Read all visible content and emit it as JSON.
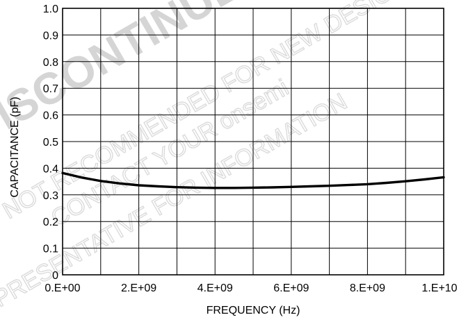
{
  "chart_data": {
    "type": "line",
    "xlabel": "FREQUENCY (Hz)",
    "ylabel": "CAPACITANCE (pF)",
    "xlim": [
      0,
      10000000000
    ],
    "ylim": [
      0,
      1.0
    ],
    "grid": true,
    "x_ticks": [
      0,
      1000000000,
      2000000000,
      3000000000,
      4000000000,
      5000000000,
      6000000000,
      7000000000,
      8000000000,
      9000000000,
      10000000000
    ],
    "x_tick_labels": [
      "0.E+00",
      "2.E+09",
      "4.E+09",
      "6.E+09",
      "8.E+09",
      "1.E+10"
    ],
    "x_tick_label_values": [
      0,
      2000000000,
      4000000000,
      6000000000,
      8000000000,
      10000000000
    ],
    "y_ticks": [
      0,
      0.1,
      0.2,
      0.3,
      0.4,
      0.5,
      0.6,
      0.7,
      0.8,
      0.9,
      1.0
    ],
    "y_tick_labels": [
      "0",
      "0.1",
      "0.2",
      "0.3",
      "0.4",
      "0.5",
      "0.6",
      "0.7",
      "0.8",
      "0.9",
      "1.0"
    ],
    "series": [
      {
        "color": "#000000",
        "x": [
          0,
          500000000,
          1000000000,
          1500000000,
          2000000000,
          2500000000,
          3000000000,
          3500000000,
          4000000000,
          4500000000,
          5000000000,
          5500000000,
          6000000000,
          6500000000,
          7000000000,
          7500000000,
          8000000000,
          8500000000,
          9000000000,
          9500000000,
          10000000000
        ],
        "y": [
          0.382,
          0.365,
          0.352,
          0.343,
          0.336,
          0.332,
          0.329,
          0.327,
          0.326,
          0.326,
          0.327,
          0.328,
          0.33,
          0.332,
          0.334,
          0.337,
          0.34,
          0.345,
          0.351,
          0.358,
          0.366
        ]
      }
    ]
  },
  "watermark": {
    "lines": [
      "DISCONTINUED",
      "NOT RECOMMENDED FOR NEW DESIGN",
      "CONTACT YOUR onsemi",
      "REPRESENTATIVE FOR INFORMATION"
    ],
    "color": "#c8c8c8"
  }
}
